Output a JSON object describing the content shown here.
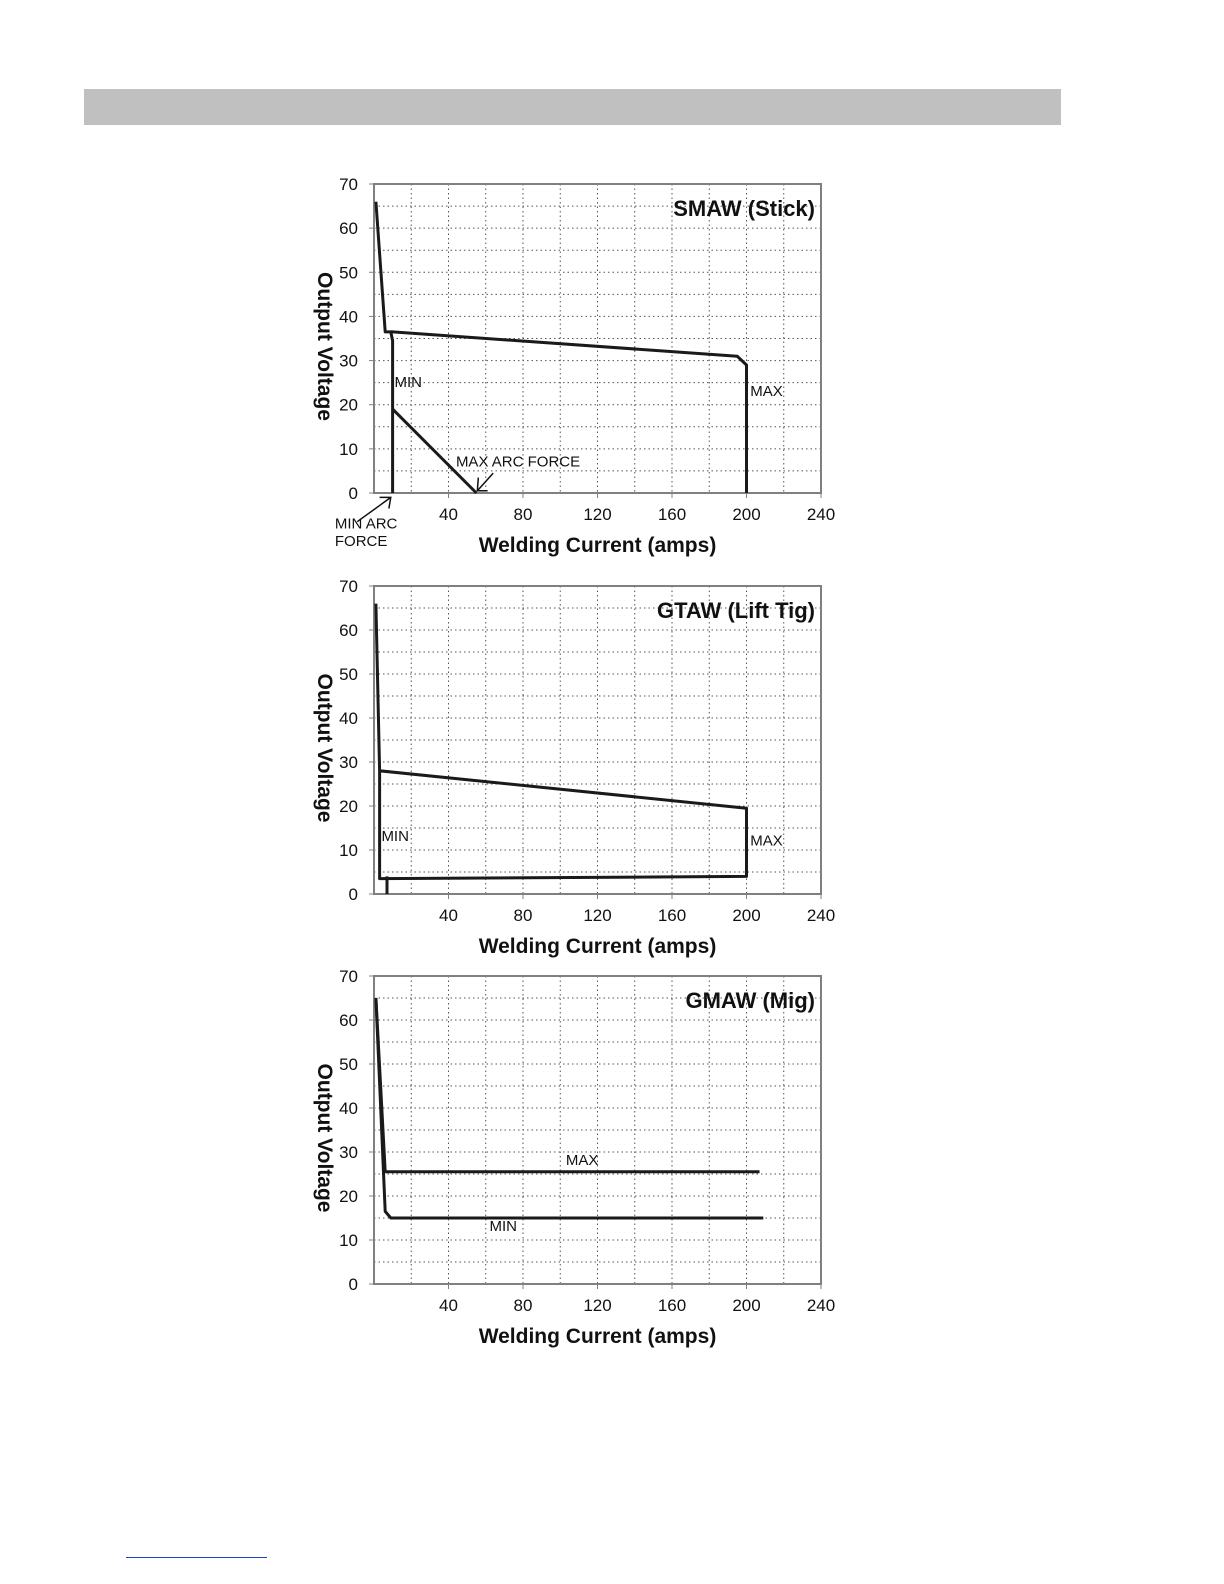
{
  "chart_data": [
    {
      "type": "line",
      "title": "SMAW (Stick)",
      "xlabel": "Welding Current (amps)",
      "ylabel": "Output Voltage",
      "xlim": [
        0,
        240
      ],
      "ylim": [
        0,
        70
      ],
      "x_ticks": [
        40,
        80,
        120,
        160,
        200,
        240
      ],
      "y_ticks": [
        0,
        10,
        20,
        30,
        40,
        50,
        60,
        70
      ],
      "grid": true,
      "series": [
        {
          "name": "MAX",
          "x": [
            1,
            6,
            10,
            10,
            195,
            200,
            200
          ],
          "y": [
            66,
            36.5,
            36.5,
            36.5,
            31,
            29,
            0
          ]
        },
        {
          "name": "MIN",
          "x": [
            10,
            10,
            9,
            10
          ],
          "y": [
            0,
            34.5,
            36.5,
            36.5
          ]
        },
        {
          "name": "MAX ARC FORCE",
          "x": [
            10,
            55
          ],
          "y": [
            19,
            0
          ]
        }
      ],
      "annotations": [
        {
          "text": "MIN",
          "x": 11,
          "y": 24
        },
        {
          "text": "MAX",
          "x": 202,
          "y": 22
        },
        {
          "text": "MAX ARC FORCE",
          "x": 44,
          "y": 6
        },
        {
          "text": "MIN ARC",
          "x": -21,
          "y": -8
        },
        {
          "text": "FORCE",
          "x": -21,
          "y": -12
        }
      ]
    },
    {
      "type": "line",
      "title": "GTAW (Lift Tig)",
      "xlabel": "Welding Current (amps)",
      "ylabel": "Output Voltage",
      "xlim": [
        0,
        240
      ],
      "ylim": [
        0,
        70
      ],
      "x_ticks": [
        40,
        80,
        120,
        160,
        200,
        240
      ],
      "y_ticks": [
        0,
        10,
        20,
        30,
        40,
        50,
        60,
        70
      ],
      "grid": true,
      "series": [
        {
          "name": "MAX",
          "x": [
            1,
            3,
            200,
            200,
            3,
            3
          ],
          "y": [
            66,
            28,
            19.5,
            4,
            3.5,
            28
          ]
        },
        {
          "name": "MIN",
          "x": [
            7,
            7
          ],
          "y": [
            4,
            0
          ]
        }
      ],
      "annotations": [
        {
          "text": "MIN",
          "x": 4,
          "y": 12
        },
        {
          "text": "MAX",
          "x": 202,
          "y": 11
        }
      ]
    },
    {
      "type": "line",
      "title": "GMAW (Mig)",
      "xlabel": "Welding Current (amps)",
      "ylabel": "Output Voltage",
      "xlim": [
        0,
        240
      ],
      "ylim": [
        0,
        70
      ],
      "x_ticks": [
        40,
        80,
        120,
        160,
        200,
        240
      ],
      "y_ticks": [
        0,
        10,
        20,
        30,
        40,
        50,
        60,
        70
      ],
      "grid": true,
      "series": [
        {
          "name": "MAX",
          "x": [
            1,
            6,
            207
          ],
          "y": [
            65,
            25.5,
            25.5
          ]
        },
        {
          "name": "MIN",
          "x": [
            1,
            6,
            9,
            209
          ],
          "y": [
            65,
            16.5,
            15,
            15
          ]
        }
      ],
      "annotations": [
        {
          "text": "MAX",
          "x": 103,
          "y": 27
        },
        {
          "text": "MIN",
          "x": 62,
          "y": 12
        }
      ]
    }
  ]
}
